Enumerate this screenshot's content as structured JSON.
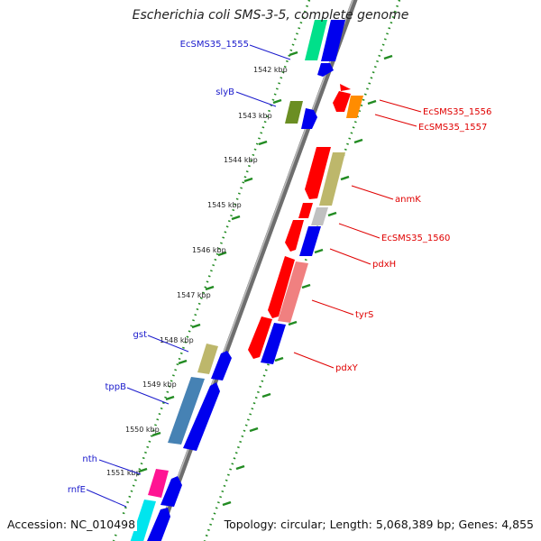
{
  "header": {
    "title": "Escherichia coli SMS-3-5, complete genome"
  },
  "footer": {
    "accession": "Accession: NC_010498",
    "topology": "Topology: circular; Length: 5,068,389 bp; Genes: 4,855"
  },
  "ruler": [
    "1542 kbp",
    "1543 kbp",
    "1544 kbp",
    "1545 kbp",
    "1546 kbp",
    "1547 kbp",
    "1548 kbp",
    "1549 kbp",
    "1550 kbp",
    "1551 kbp"
  ],
  "genes_left": [
    {
      "name": "EcSMS35_1555",
      "color": "#1a1acc"
    },
    {
      "name": "slyB",
      "color": "#1a1acc"
    },
    {
      "name": "gst",
      "color": "#1a1acc"
    },
    {
      "name": "tppB",
      "color": "#1a1acc"
    },
    {
      "name": "nth",
      "color": "#1a1acc"
    },
    {
      "name": "rnfE",
      "color": "#1a1acc"
    }
  ],
  "genes_right": [
    {
      "name": "EcSMS35_1556",
      "color": "#e00000"
    },
    {
      "name": "EcSMS35_1557",
      "color": "#e00000"
    },
    {
      "name": "anmK",
      "color": "#e00000"
    },
    {
      "name": "EcSMS35_1560",
      "color": "#e00000"
    },
    {
      "name": "pdxH",
      "color": "#e00000"
    },
    {
      "name": "tyrS",
      "color": "#e00000"
    },
    {
      "name": "pdxY",
      "color": "#e00000"
    }
  ],
  "colors": {
    "blue": "#0000ee",
    "red": "#ff0000",
    "olive": "#6b8e23",
    "khaki": "#bdb76b",
    "orange": "#ff8c00",
    "grey": "#c0c0c0",
    "salmon": "#f08080",
    "steelblue": "#4682b4",
    "magenta": "#ff1493",
    "cyan": "#00e5ee",
    "green": "#00e08a",
    "dots": "#228b22"
  }
}
